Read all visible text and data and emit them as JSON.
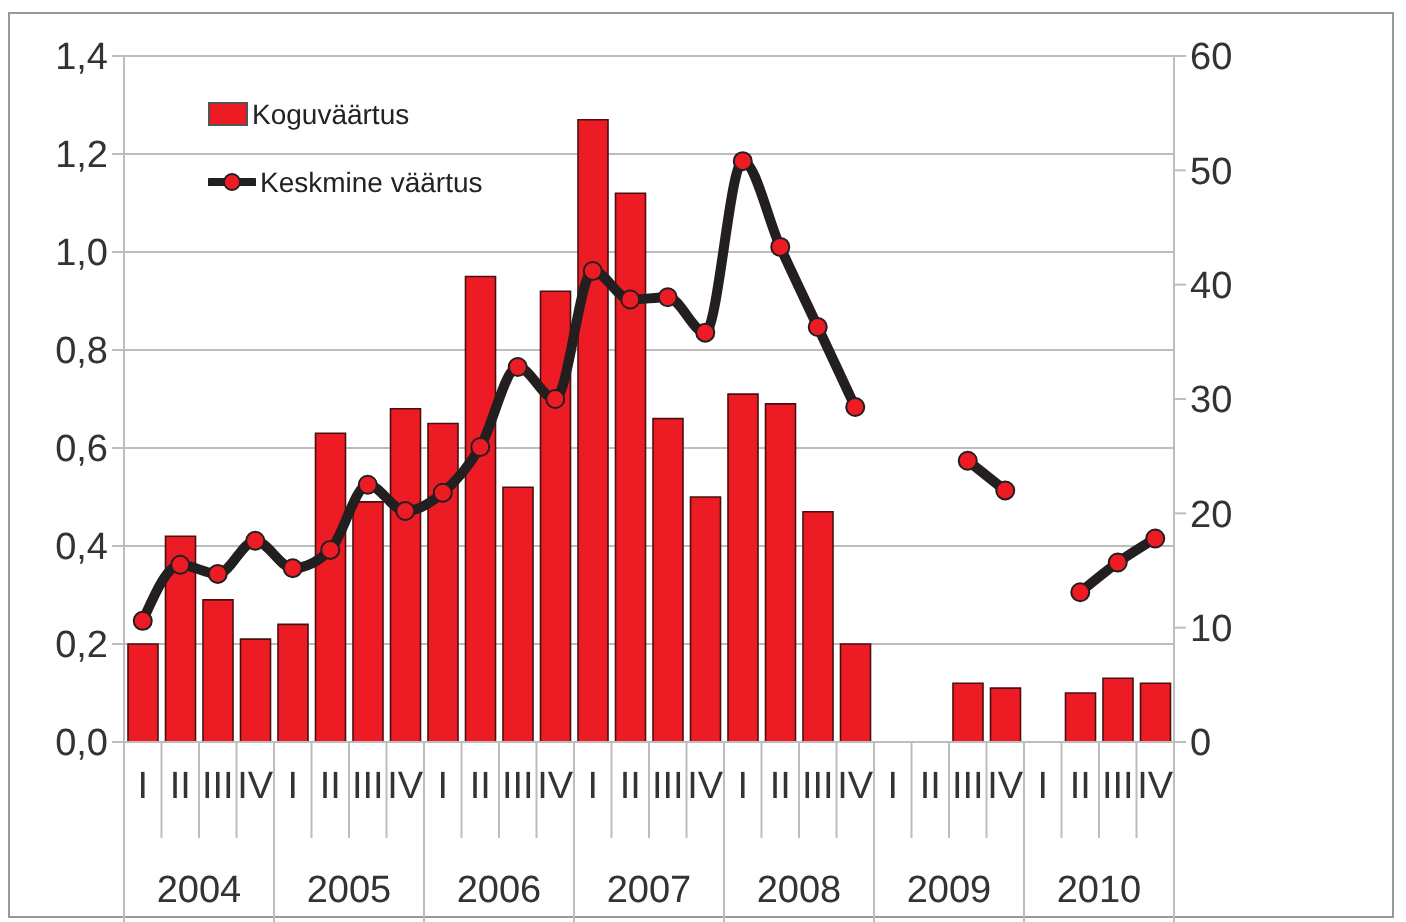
{
  "chart_data": {
    "type": "bar",
    "categories": [
      "I",
      "II",
      "III",
      "IV",
      "I",
      "II",
      "III",
      "IV",
      "I",
      "II",
      "III",
      "IV",
      "I",
      "II",
      "III",
      "IV",
      "I",
      "II",
      "III",
      "IV",
      "I",
      "II",
      "III",
      "IV",
      "I",
      "II",
      "III",
      "IV"
    ],
    "annotations": [
      "2004",
      "2005",
      "2006",
      "2007",
      "2008",
      "2009",
      "2010"
    ],
    "series": [
      {
        "name": "Koguväärtus",
        "color": "#ed1c24",
        "values": [
          0.2,
          0.42,
          0.29,
          0.21,
          0.24,
          0.63,
          0.49,
          0.68,
          0.65,
          0.95,
          0.52,
          0.92,
          1.27,
          1.12,
          0.66,
          0.5,
          0.71,
          0.69,
          0.47,
          0.2,
          null,
          null,
          0.12,
          0.11,
          null,
          0.1,
          0.13,
          0.12
        ]
      },
      {
        "name": "Keskmine väärtus",
        "type": "line",
        "axis": "y2",
        "color": "#231f20",
        "values": [
          10.6,
          15.5,
          14.7,
          17.6,
          15.2,
          16.8,
          22.5,
          20.2,
          21.8,
          25.8,
          32.8,
          30.0,
          41.2,
          38.7,
          38.9,
          35.8,
          50.8,
          43.3,
          36.3,
          29.3,
          null,
          null,
          24.6,
          22.0,
          null,
          13.1,
          15.7,
          17.8
        ]
      }
    ],
    "ylim": [
      0,
      1.4
    ],
    "yticks": [
      {
        "value": 0,
        "label": "0,0"
      },
      {
        "value": 0.2,
        "label": "0,2"
      },
      {
        "value": 0.4,
        "label": "0,4"
      },
      {
        "value": 0.6,
        "label": "0,6"
      },
      {
        "value": 0.8,
        "label": "0,8"
      },
      {
        "value": 1.0,
        "label": "1,0"
      },
      {
        "value": 1.2,
        "label": "1,2"
      },
      {
        "value": 1.4,
        "label": "1,4"
      }
    ],
    "y2lim": [
      0,
      60
    ],
    "y2ticks": [
      0,
      10,
      20,
      30,
      40,
      50,
      60
    ],
    "grid": "y",
    "legend": "top left",
    "marker": "circle",
    "line_style": "solid"
  }
}
